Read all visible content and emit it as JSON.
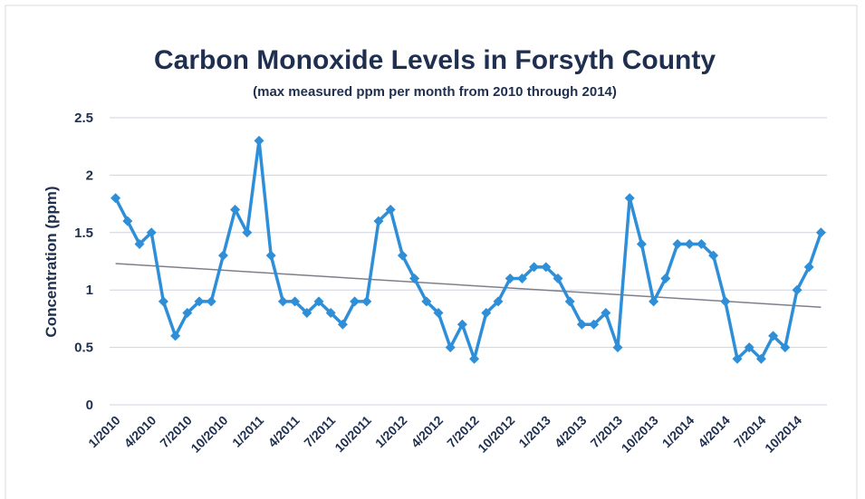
{
  "chart_data": {
    "type": "line",
    "title": "Carbon Monoxide Levels in Forsyth County",
    "subtitle": "(max measured ppm per month from 2010 through 2014)",
    "y_label": "Concentration (ppm)",
    "categories": [
      "1/2010",
      null,
      null,
      "4/2010",
      null,
      null,
      "7/2010",
      null,
      null,
      "10/2010",
      null,
      null,
      "1/2011",
      null,
      null,
      "4/2011",
      null,
      null,
      "7/2011",
      null,
      null,
      "10/2011",
      null,
      null,
      "1/2012",
      null,
      null,
      "4/2012",
      null,
      null,
      "7/2012",
      null,
      null,
      "10/2012",
      null,
      null,
      "1/2013",
      null,
      null,
      "4/2013",
      null,
      null,
      "7/2013",
      null,
      null,
      "10/2013",
      null,
      null,
      "1/2014",
      null,
      null,
      "4/2014",
      null,
      null,
      "7/2014",
      null,
      null,
      "10/2014",
      null,
      null
    ],
    "series": [
      {
        "name": "CO",
        "color": "#2e8fd8",
        "values": [
          1.8,
          1.6,
          1.4,
          1.5,
          0.9,
          0.6,
          0.8,
          0.9,
          0.9,
          1.3,
          1.7,
          1.5,
          2.3,
          1.3,
          0.9,
          0.9,
          0.8,
          0.9,
          0.8,
          0.7,
          0.9,
          0.9,
          1.6,
          1.7,
          1.3,
          1.1,
          0.9,
          0.8,
          0.5,
          0.7,
          0.4,
          0.8,
          0.9,
          1.1,
          1.1,
          1.2,
          1.2,
          1.1,
          0.9,
          0.7,
          0.7,
          0.8,
          0.5,
          1.8,
          1.4,
          0.9,
          1.1,
          1.4,
          1.4,
          1.4,
          1.3,
          0.9,
          0.4,
          0.5,
          0.4,
          0.6,
          0.5,
          1.0,
          1.2,
          1.5
        ]
      }
    ],
    "trendline": {
      "color": "#7f7f8c",
      "start": 1.23,
      "end": 0.85
    },
    "ylim": [
      0,
      2.5
    ],
    "yticks": [
      0,
      0.5,
      1,
      1.5,
      2,
      2.5
    ],
    "grid": true
  }
}
